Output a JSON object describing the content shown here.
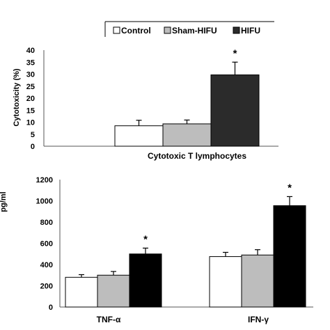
{
  "legend": {
    "items": [
      {
        "label": "Control",
        "color": "#ffffff"
      },
      {
        "label": "Sham-HIFU",
        "color": "#bdbdbd"
      },
      {
        "label": "HIFU",
        "color": "#2b2b2b"
      }
    ]
  },
  "chart_data": [
    {
      "type": "bar",
      "ylabel": "Cytotoxicity (%)",
      "xlabel": "",
      "ylim": [
        0,
        40
      ],
      "yticks": [
        "40",
        "35",
        "30",
        "25",
        "20",
        "15",
        "10",
        "5",
        "0"
      ],
      "categories": [
        "Cytotoxic T lymphocytes"
      ],
      "series": [
        {
          "name": "Control",
          "values": [
            8.5
          ],
          "errors": [
            2.3
          ],
          "color": "#ffffff"
        },
        {
          "name": "Sham-HIFU",
          "values": [
            9.3
          ],
          "errors": [
            1.6
          ],
          "color": "#bdbdbd"
        },
        {
          "name": "HIFU",
          "values": [
            29.7
          ],
          "errors": [
            5.3
          ],
          "color": "#2b2b2b"
        }
      ],
      "annotations": [
        {
          "category": 0,
          "series": 2,
          "text": "*"
        }
      ],
      "grid": false
    },
    {
      "type": "bar",
      "ylabel": "pg/ml",
      "xlabel": "",
      "ylim": [
        0,
        1200
      ],
      "yticks": [
        "1200",
        "1000",
        "800",
        "600",
        "400",
        "200",
        "0"
      ],
      "categories": [
        "TNF-α",
        "IFN-γ"
      ],
      "series": [
        {
          "name": "Control",
          "values": [
            280,
            475
          ],
          "errors": [
            25,
            40
          ],
          "color": "#ffffff"
        },
        {
          "name": "Sham-HIFU",
          "values": [
            300,
            490
          ],
          "errors": [
            35,
            50
          ],
          "color": "#bdbdbd"
        },
        {
          "name": "HIFU",
          "values": [
            500,
            955
          ],
          "errors": [
            55,
            85
          ],
          "color": "#000000"
        }
      ],
      "annotations": [
        {
          "category": 0,
          "series": 2,
          "text": "*"
        },
        {
          "category": 1,
          "series": 2,
          "text": "*"
        }
      ],
      "grid": false
    }
  ]
}
